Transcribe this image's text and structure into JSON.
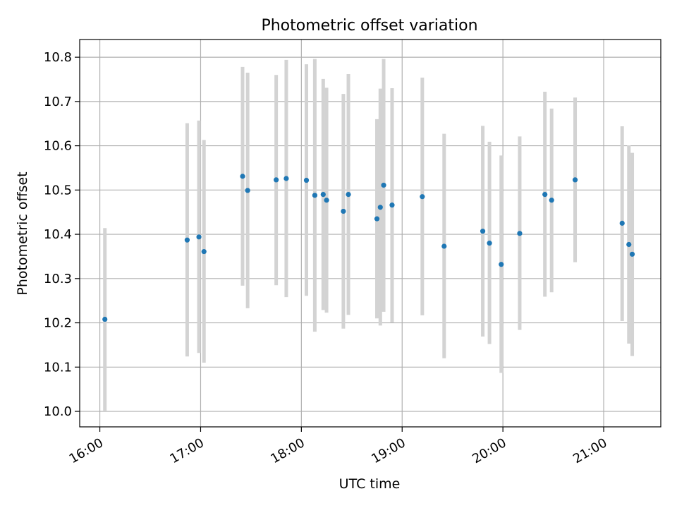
{
  "chart_data": {
    "type": "scatter",
    "title": "Photometric offset variation",
    "xlabel": "UTC time",
    "ylabel": "Photometric offset",
    "xlim": [
      "15:48",
      "21:34"
    ],
    "ylim": [
      9.965,
      10.84
    ],
    "x_ticks": [
      "16:00",
      "17:00",
      "18:00",
      "19:00",
      "20:00",
      "21:00"
    ],
    "y_ticks": [
      "10.0",
      "10.1",
      "10.2",
      "10.3",
      "10.4",
      "10.5",
      "10.6",
      "10.7",
      "10.8"
    ],
    "grid": true,
    "colors": {
      "point": "#1f77b4",
      "errorbar": "#d3d3d3",
      "grid": "#b0b0b0"
    },
    "points": [
      {
        "x": "16:03",
        "y": 10.208,
        "ymin": 10.0,
        "ymax": 10.414
      },
      {
        "x": "16:52",
        "y": 10.387,
        "ymin": 10.124,
        "ymax": 10.651
      },
      {
        "x": "16:59",
        "y": 10.394,
        "ymin": 10.132,
        "ymax": 10.657
      },
      {
        "x": "17:02",
        "y": 10.361,
        "ymin": 10.11,
        "ymax": 10.613
      },
      {
        "x": "17:25",
        "y": 10.531,
        "ymin": 10.284,
        "ymax": 10.778
      },
      {
        "x": "17:28",
        "y": 10.499,
        "ymin": 10.233,
        "ymax": 10.765
      },
      {
        "x": "17:45",
        "y": 10.523,
        "ymin": 10.285,
        "ymax": 10.76
      },
      {
        "x": "17:51",
        "y": 10.526,
        "ymin": 10.258,
        "ymax": 10.794
      },
      {
        "x": "18:03",
        "y": 10.522,
        "ymin": 10.261,
        "ymax": 10.784
      },
      {
        "x": "18:08",
        "y": 10.488,
        "ymin": 10.18,
        "ymax": 10.796
      },
      {
        "x": "18:13",
        "y": 10.49,
        "ymin": 10.229,
        "ymax": 10.751
      },
      {
        "x": "18:15",
        "y": 10.477,
        "ymin": 10.223,
        "ymax": 10.731
      },
      {
        "x": "18:25",
        "y": 10.452,
        "ymin": 10.187,
        "ymax": 10.717
      },
      {
        "x": "18:28",
        "y": 10.49,
        "ymin": 10.218,
        "ymax": 10.762
      },
      {
        "x": "18:45",
        "y": 10.435,
        "ymin": 10.21,
        "ymax": 10.66
      },
      {
        "x": "18:47",
        "y": 10.461,
        "ymin": 10.194,
        "ymax": 10.729
      },
      {
        "x": "18:49",
        "y": 10.511,
        "ymin": 10.225,
        "ymax": 10.796
      },
      {
        "x": "18:54",
        "y": 10.466,
        "ymin": 10.201,
        "ymax": 10.73
      },
      {
        "x": "19:12",
        "y": 10.485,
        "ymin": 10.217,
        "ymax": 10.754
      },
      {
        "x": "19:25",
        "y": 10.373,
        "ymin": 10.12,
        "ymax": 10.627
      },
      {
        "x": "19:48",
        "y": 10.407,
        "ymin": 10.169,
        "ymax": 10.645
      },
      {
        "x": "19:52",
        "y": 10.38,
        "ymin": 10.152,
        "ymax": 10.609
      },
      {
        "x": "19:59",
        "y": 10.332,
        "ymin": 10.087,
        "ymax": 10.578
      },
      {
        "x": "20:10",
        "y": 10.402,
        "ymin": 10.184,
        "ymax": 10.621
      },
      {
        "x": "20:25",
        "y": 10.49,
        "ymin": 10.259,
        "ymax": 10.722
      },
      {
        "x": "20:29",
        "y": 10.477,
        "ymin": 10.269,
        "ymax": 10.684
      },
      {
        "x": "20:43",
        "y": 10.523,
        "ymin": 10.337,
        "ymax": 10.709
      },
      {
        "x": "21:11",
        "y": 10.425,
        "ymin": 10.204,
        "ymax": 10.644
      },
      {
        "x": "21:15",
        "y": 10.377,
        "ymin": 10.153,
        "ymax": 10.601
      },
      {
        "x": "21:17",
        "y": 10.355,
        "ymin": 10.125,
        "ymax": 10.584
      }
    ]
  }
}
